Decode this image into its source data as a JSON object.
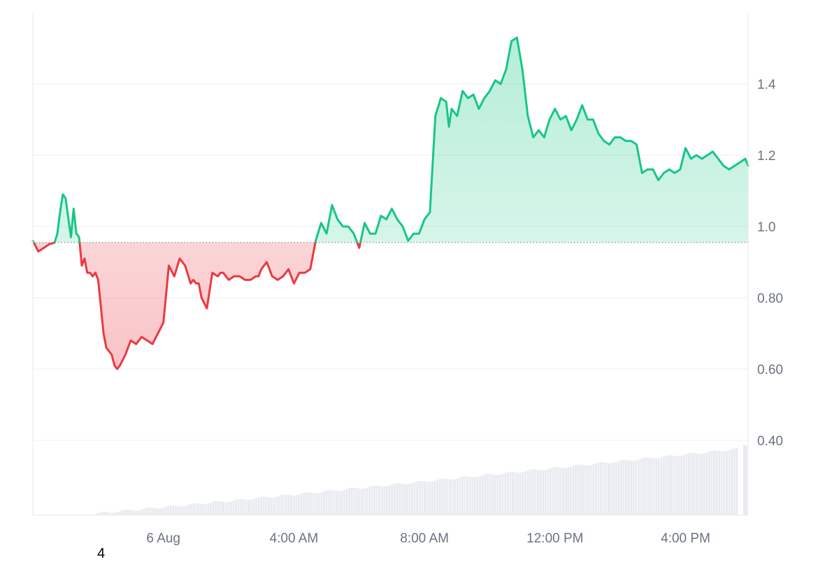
{
  "chart_data": {
    "type": "area",
    "baseline": 0.955,
    "ylim": [
      0.19,
      1.6
    ],
    "xlim": [
      "2024-08-05T20:00",
      "2024-08-06T17:55"
    ],
    "y_ticks": [
      0.4,
      0.6,
      0.8,
      1.0,
      1.2,
      1.4
    ],
    "y_tick_labels": [
      "0.40",
      "0.60",
      "0.80",
      "1.0",
      "1.2",
      "1.4"
    ],
    "x_ticks": [
      "2024-08-06T00:00",
      "2024-08-06T04:00",
      "2024-08-06T08:00",
      "2024-08-06T12:00",
      "2024-08-06T16:00"
    ],
    "x_tick_labels": [
      "6 Aug",
      "4:00 AM",
      "8:00 AM",
      "12:00 PM",
      "4:00 PM"
    ],
    "grid": "horizontal",
    "colors": {
      "up": "#16c784",
      "down": "#ea3943",
      "baseline": "#8a8f98",
      "grid": "#eef0f3",
      "volume": "#e8ebf0"
    },
    "x": [
      "2024-08-05T20:00",
      "2024-08-05T20:10",
      "2024-08-05T20:20",
      "2024-08-05T20:30",
      "2024-08-05T20:40",
      "2024-08-05T20:45",
      "2024-08-05T20:50",
      "2024-08-05T20:55",
      "2024-08-05T21:00",
      "2024-08-05T21:10",
      "2024-08-05T21:15",
      "2024-08-05T21:20",
      "2024-08-05T21:25",
      "2024-08-05T21:30",
      "2024-08-05T21:35",
      "2024-08-05T21:40",
      "2024-08-05T21:45",
      "2024-08-05T21:50",
      "2024-08-05T21:55",
      "2024-08-05T22:00",
      "2024-08-05T22:10",
      "2024-08-05T22:15",
      "2024-08-05T22:25",
      "2024-08-05T22:30",
      "2024-08-05T22:35",
      "2024-08-05T22:40",
      "2024-08-05T22:50",
      "2024-08-05T23:00",
      "2024-08-05T23:10",
      "2024-08-05T23:20",
      "2024-08-05T23:30",
      "2024-08-05T23:40",
      "2024-08-05T23:50",
      "2024-08-06T00:00",
      "2024-08-06T00:10",
      "2024-08-06T00:20",
      "2024-08-06T00:30",
      "2024-08-06T00:40",
      "2024-08-06T00:50",
      "2024-08-06T00:55",
      "2024-08-06T01:00",
      "2024-08-06T01:05",
      "2024-08-06T01:10",
      "2024-08-06T01:20",
      "2024-08-06T01:30",
      "2024-08-06T01:40",
      "2024-08-06T01:45",
      "2024-08-06T01:50",
      "2024-08-06T02:00",
      "2024-08-06T02:10",
      "2024-08-06T02:20",
      "2024-08-06T02:30",
      "2024-08-06T02:40",
      "2024-08-06T02:50",
      "2024-08-06T02:55",
      "2024-08-06T03:00",
      "2024-08-06T03:10",
      "2024-08-06T03:20",
      "2024-08-06T03:30",
      "2024-08-06T03:40",
      "2024-08-06T03:50",
      "2024-08-06T04:00",
      "2024-08-06T04:10",
      "2024-08-06T04:20",
      "2024-08-06T04:30",
      "2024-08-06T04:40",
      "2024-08-06T04:50",
      "2024-08-06T05:00",
      "2024-08-06T05:10",
      "2024-08-06T05:20",
      "2024-08-06T05:30",
      "2024-08-06T05:40",
      "2024-08-06T05:50",
      "2024-08-06T06:00",
      "2024-08-06T06:10",
      "2024-08-06T06:20",
      "2024-08-06T06:30",
      "2024-08-06T06:40",
      "2024-08-06T06:50",
      "2024-08-06T07:00",
      "2024-08-06T07:10",
      "2024-08-06T07:20",
      "2024-08-06T07:30",
      "2024-08-06T07:40",
      "2024-08-06T07:50",
      "2024-08-06T08:00",
      "2024-08-06T08:10",
      "2024-08-06T08:20",
      "2024-08-06T08:30",
      "2024-08-06T08:40",
      "2024-08-06T08:45",
      "2024-08-06T08:50",
      "2024-08-06T09:00",
      "2024-08-06T09:10",
      "2024-08-06T09:20",
      "2024-08-06T09:30",
      "2024-08-06T09:40",
      "2024-08-06T09:50",
      "2024-08-06T10:00",
      "2024-08-06T10:10",
      "2024-08-06T10:20",
      "2024-08-06T10:30",
      "2024-08-06T10:40",
      "2024-08-06T10:50",
      "2024-08-06T11:00",
      "2024-08-06T11:10",
      "2024-08-06T11:20",
      "2024-08-06T11:30",
      "2024-08-06T11:40",
      "2024-08-06T11:50",
      "2024-08-06T12:00",
      "2024-08-06T12:10",
      "2024-08-06T12:20",
      "2024-08-06T12:30",
      "2024-08-06T12:40",
      "2024-08-06T12:50",
      "2024-08-06T13:00",
      "2024-08-06T13:10",
      "2024-08-06T13:20",
      "2024-08-06T13:30",
      "2024-08-06T13:40",
      "2024-08-06T13:50",
      "2024-08-06T14:00",
      "2024-08-06T14:10",
      "2024-08-06T14:20",
      "2024-08-06T14:30",
      "2024-08-06T14:40",
      "2024-08-06T14:50",
      "2024-08-06T15:00",
      "2024-08-06T15:10",
      "2024-08-06T15:20",
      "2024-08-06T15:30",
      "2024-08-06T15:40",
      "2024-08-06T15:50",
      "2024-08-06T16:00",
      "2024-08-06T16:10",
      "2024-08-06T16:20",
      "2024-08-06T16:30",
      "2024-08-06T16:40",
      "2024-08-06T16:50",
      "2024-08-06T17:00",
      "2024-08-06T17:10",
      "2024-08-06T17:20",
      "2024-08-06T17:30",
      "2024-08-06T17:40",
      "2024-08-06T17:50",
      "2024-08-06T17:55"
    ],
    "values": [
      0.96,
      0.93,
      0.94,
      0.95,
      0.955,
      0.98,
      1.04,
      1.09,
      1.08,
      0.97,
      1.05,
      0.98,
      0.97,
      0.89,
      0.91,
      0.87,
      0.87,
      0.86,
      0.87,
      0.85,
      0.7,
      0.66,
      0.64,
      0.61,
      0.6,
      0.61,
      0.64,
      0.68,
      0.67,
      0.69,
      0.68,
      0.67,
      0.7,
      0.73,
      0.89,
      0.86,
      0.91,
      0.89,
      0.84,
      0.85,
      0.84,
      0.84,
      0.8,
      0.77,
      0.87,
      0.86,
      0.87,
      0.87,
      0.85,
      0.86,
      0.86,
      0.85,
      0.85,
      0.86,
      0.86,
      0.88,
      0.9,
      0.86,
      0.85,
      0.86,
      0.88,
      0.84,
      0.87,
      0.87,
      0.88,
      0.96,
      1.01,
      0.98,
      1.06,
      1.02,
      1.0,
      1.0,
      0.98,
      0.94,
      1.01,
      0.98,
      0.98,
      1.03,
      1.02,
      1.05,
      1.02,
      1.0,
      0.96,
      0.98,
      0.98,
      1.02,
      1.04,
      1.31,
      1.36,
      1.35,
      1.28,
      1.33,
      1.31,
      1.38,
      1.36,
      1.37,
      1.33,
      1.36,
      1.38,
      1.41,
      1.4,
      1.44,
      1.52,
      1.53,
      1.44,
      1.31,
      1.25,
      1.27,
      1.25,
      1.3,
      1.33,
      1.3,
      1.31,
      1.27,
      1.3,
      1.34,
      1.3,
      1.3,
      1.26,
      1.24,
      1.23,
      1.25,
      1.25,
      1.24,
      1.24,
      1.23,
      1.15,
      1.16,
      1.16,
      1.13,
      1.15,
      1.16,
      1.15,
      1.16,
      1.22,
      1.19,
      1.2,
      1.19,
      1.2,
      1.21,
      1.19,
      1.17,
      1.16,
      1.17,
      1.18,
      1.19,
      1.17
    ]
  },
  "corner_label": "4"
}
